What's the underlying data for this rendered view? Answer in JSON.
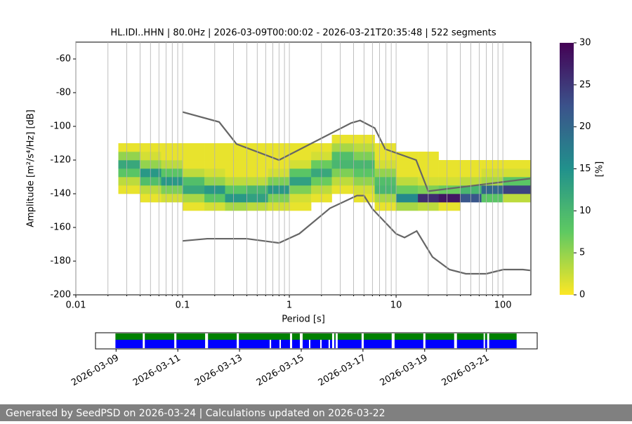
{
  "chart_data": [
    {
      "type": "ppsd",
      "title": "HL.IDI..HHN | 80.0Hz | 2026-03-09T00:00:02 - 2026-03-21T20:35:48 | 522 segments",
      "xlabel": "Period [s]",
      "ylabel": "Amplitude [m²/s⁴/Hz] [dB]",
      "xscale": "log",
      "xlim": [
        0.01,
        183
      ],
      "ylim": [
        -200,
        -50
      ],
      "xticks": [
        0.01,
        0.1,
        1,
        10,
        100
      ],
      "xminorticks": [
        0.02,
        0.03,
        0.04,
        0.05,
        0.06,
        0.07,
        0.08,
        0.09,
        0.2,
        0.3,
        0.4,
        0.5,
        0.6,
        0.7,
        0.8,
        0.9,
        2,
        3,
        4,
        5,
        6,
        7,
        8,
        9,
        20,
        30,
        40,
        50,
        60,
        70,
        80,
        90
      ],
      "yticks": [
        -200,
        -180,
        -160,
        -140,
        -120,
        -100,
        -80,
        -60
      ],
      "grid": "x",
      "colormap": "viridis_r",
      "xbins": [
        0.025,
        0.04,
        0.063,
        0.1,
        0.16,
        0.25,
        0.4,
        0.63,
        1,
        1.6,
        2.5,
        4,
        6.3,
        10,
        16,
        25,
        40,
        63,
        100,
        180
      ],
      "ybins": [
        -150,
        -145,
        -140,
        -135,
        -130,
        -125,
        -120,
        -115,
        -110,
        -105
      ],
      "z": [
        [
          0,
          0,
          1,
          3,
          8,
          12,
          5,
          1,
          0
        ],
        [
          0,
          1,
          3,
          9,
          14,
          5,
          2,
          1,
          0
        ],
        [
          0,
          2,
          6,
          14,
          8,
          3,
          1,
          1,
          0
        ],
        [
          1,
          4,
          12,
          9,
          3,
          1,
          1,
          1,
          0
        ],
        [
          2,
          8,
          14,
          5,
          2,
          1,
          1,
          1,
          0
        ],
        [
          4,
          14,
          8,
          3,
          1,
          1,
          1,
          1,
          0
        ],
        [
          3,
          13,
          10,
          3,
          1,
          1,
          1,
          1,
          0
        ],
        [
          2,
          6,
          14,
          6,
          2,
          1,
          1,
          1,
          0
        ],
        [
          1,
          2,
          6,
          13,
          8,
          2,
          1,
          1,
          0
        ],
        [
          0,
          1,
          3,
          7,
          12,
          7,
          2,
          1,
          0
        ],
        [
          0,
          0,
          1,
          3,
          6,
          10,
          9,
          4,
          1
        ],
        [
          0,
          1,
          2,
          5,
          8,
          10,
          6,
          3,
          1
        ],
        [
          1,
          4,
          10,
          9,
          5,
          2,
          1,
          1,
          0
        ],
        [
          4,
          16,
          7,
          3,
          1,
          1,
          1,
          0,
          0
        ],
        [
          3,
          26,
          6,
          2,
          1,
          1,
          1,
          0,
          0
        ],
        [
          1,
          28,
          7,
          2,
          1,
          1,
          0,
          0,
          0
        ],
        [
          0,
          22,
          10,
          3,
          1,
          1,
          0,
          0,
          0
        ],
        [
          0,
          8,
          20,
          4,
          2,
          1,
          0,
          0,
          0
        ],
        [
          0,
          3,
          24,
          8,
          2,
          1,
          0,
          0,
          0
        ]
      ],
      "series": [
        {
          "color": "#666666",
          "x": [
            0.1,
            0.22,
            0.32,
            0.8,
            3.8,
            4.6,
            6.3,
            7.9,
            15.4,
            20,
            180
          ],
          "values": [
            -91.5,
            -97.4,
            -110.5,
            -120,
            -98,
            -96.5,
            -101,
            -113.5,
            -120,
            -138.5,
            -131
          ]
        },
        {
          "color": "#666666",
          "x": [
            0.1,
            0.17,
            0.4,
            0.8,
            1.24,
            2.4,
            4.3,
            5,
            6,
            10,
            12,
            15.6,
            21.9,
            31.6,
            45,
            70,
            101,
            154,
            180
          ],
          "values": [
            -168,
            -166.7,
            -166.7,
            -169.2,
            -163.7,
            -148.6,
            -141.1,
            -141.1,
            -149,
            -163.8,
            -166,
            -162.1,
            -177.5,
            -185,
            -187.5,
            -187.5,
            -185,
            -185,
            -185.5
          ]
        }
      ],
      "colorbar": {
        "label": "[%]",
        "lim": [
          0,
          30
        ],
        "ticks": [
          0,
          5,
          10,
          15,
          20,
          25,
          30
        ]
      }
    },
    {
      "type": "timeline",
      "xlim": [
        "2026-03-08T08:00",
        "2026-03-22T15:30"
      ],
      "xticks": [
        "2026-03-09",
        "2026-03-11",
        "2026-03-13",
        "2026-03-15",
        "2026-03-17",
        "2026-03-19",
        "2026-03-21"
      ],
      "series": [
        {
          "color": "#008000",
          "intervals": [
            [
              "2026-03-08T23:30",
              "2026-03-09T20:45"
            ],
            [
              "2026-03-09T22:20",
              "2026-03-10T21:15"
            ],
            [
              "2026-03-10T22:55",
              "2026-03-11T21:15"
            ],
            [
              "2026-03-11T23:30",
              "2026-03-12T21:50"
            ],
            [
              "2026-03-12T23:30",
              "2026-03-14T15:15"
            ],
            [
              "2026-03-14T16:55",
              "2026-03-14T22:55"
            ],
            [
              "2026-03-15T01:05",
              "2026-03-16T00:00"
            ],
            [
              "2026-03-16T01:40",
              "2026-03-16T02:45"
            ],
            [
              "2026-03-16T04:20",
              "2026-03-16T22:55"
            ],
            [
              "2026-03-17T00:35",
              "2026-03-17T22:20"
            ],
            [
              "2026-03-18T00:35",
              "2026-03-18T22:55"
            ],
            [
              "2026-03-19T00:35",
              "2026-03-19T22:55"
            ],
            [
              "2026-03-20T01:05",
              "2026-03-20T21:50"
            ],
            [
              "2026-03-20T22:55",
              "2026-03-21T00:35"
            ],
            [
              "2026-03-21T02:10",
              "2026-03-21T23:30"
            ]
          ]
        },
        {
          "color": "#0000ff",
          "intervals": [
            [
              "2026-03-08T23:30",
              "2026-03-09T20:45"
            ],
            [
              "2026-03-09T22:20",
              "2026-03-10T21:15"
            ],
            [
              "2026-03-10T22:55",
              "2026-03-11T21:15"
            ],
            [
              "2026-03-11T23:30",
              "2026-03-12T21:50"
            ],
            [
              "2026-03-12T23:30",
              "2026-03-13T23:25"
            ],
            [
              "2026-03-14T00:35",
              "2026-03-14T07:05"
            ],
            [
              "2026-03-14T08:10",
              "2026-03-14T15:15"
            ],
            [
              "2026-03-14T16:55",
              "2026-03-14T22:55"
            ],
            [
              "2026-03-15T01:05",
              "2026-03-15T06:00"
            ],
            [
              "2026-03-15T07:05",
              "2026-03-15T14:45"
            ],
            [
              "2026-03-15T15:50",
              "2026-03-15T21:15"
            ],
            [
              "2026-03-15T22:20",
              "2026-03-16T00:00"
            ],
            [
              "2026-03-16T01:40",
              "2026-03-16T02:45"
            ],
            [
              "2026-03-16T04:20",
              "2026-03-16T22:55"
            ],
            [
              "2026-03-17T00:35",
              "2026-03-17T22:20"
            ],
            [
              "2026-03-18T00:35",
              "2026-03-18T22:55"
            ],
            [
              "2026-03-19T00:35",
              "2026-03-19T22:55"
            ],
            [
              "2026-03-20T01:05",
              "2026-03-20T21:50"
            ],
            [
              "2026-03-20T22:55",
              "2026-03-21T00:35"
            ],
            [
              "2026-03-21T02:10",
              "2026-03-21T23:30"
            ]
          ]
        }
      ]
    }
  ],
  "footer": "Generated by SeedPSD on 2026-03-24 | Calculations updated on 2026-03-22"
}
